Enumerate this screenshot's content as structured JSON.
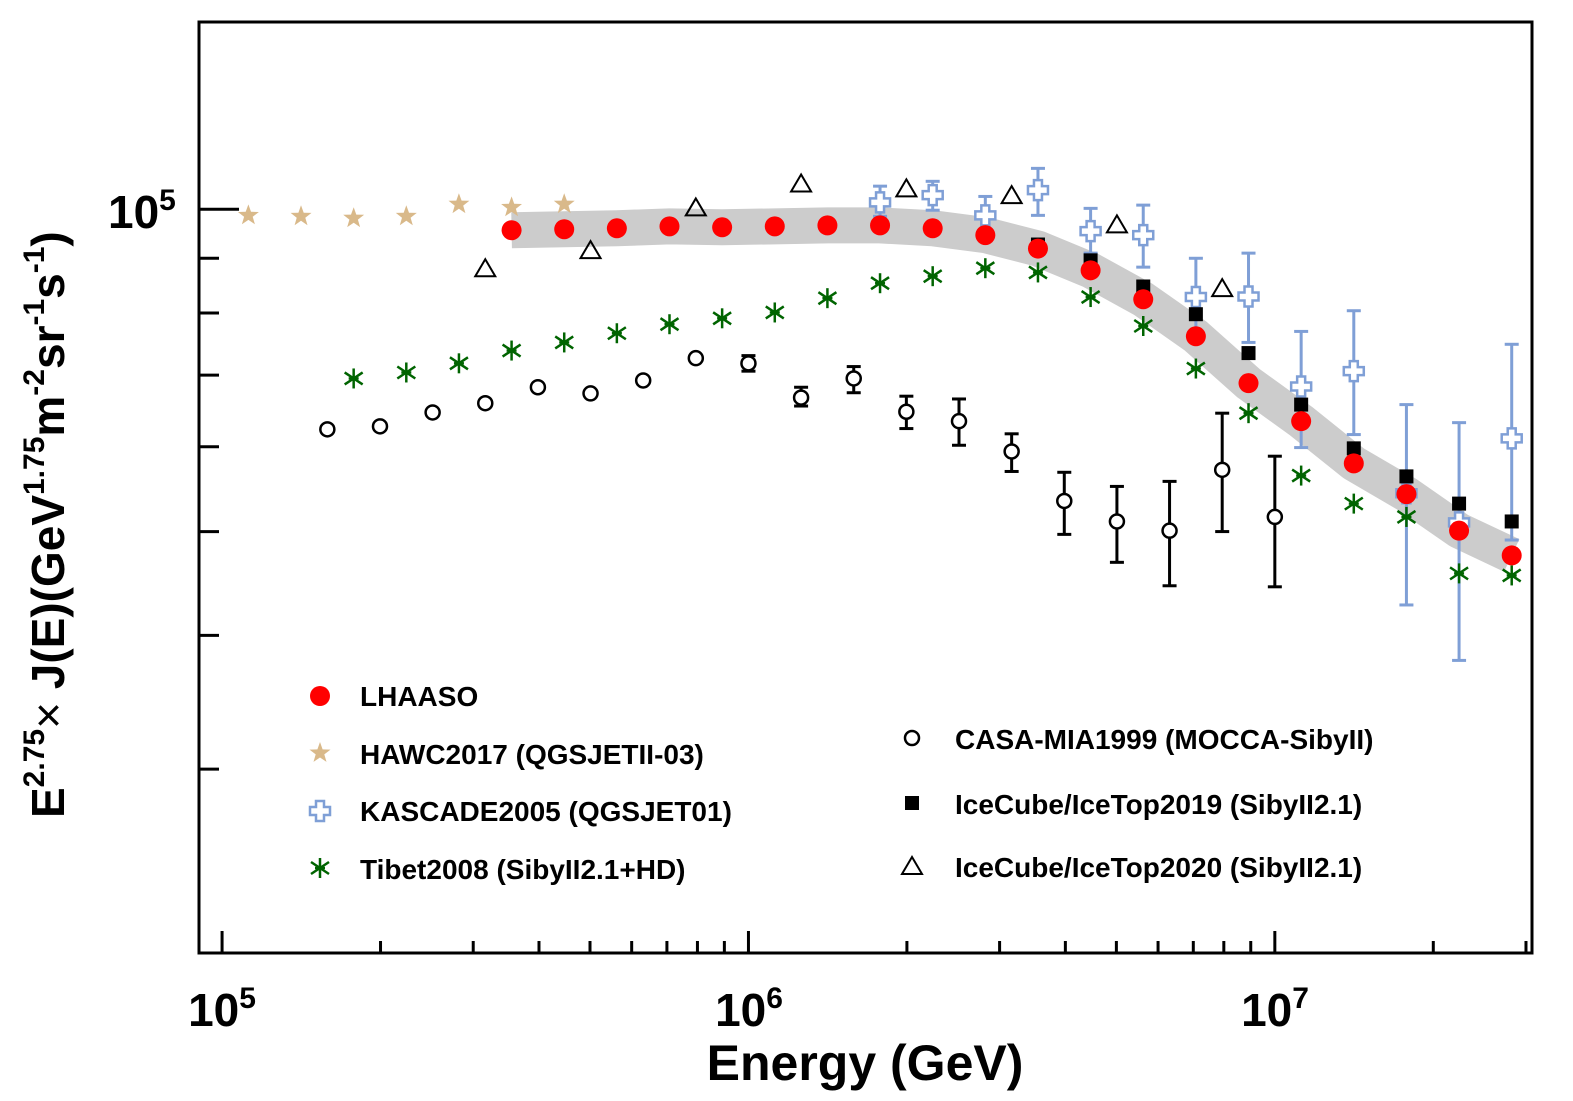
{
  "chart_data": {
    "type": "scatter",
    "xscale": "log",
    "yscale": "log",
    "xlim": [
      90400,
      30800000
    ],
    "ylim": [
      20200,
      149600
    ],
    "xlabel": "Energy (GeV)",
    "ylabel_parts": {
      "base1": "E",
      "sup1": "2.75",
      "times": "×",
      "mid": " J(E)(GeV",
      "sup2": "1.75",
      "m": "m",
      "sup3": "-2",
      "sr": "sr",
      "sup4": "-1",
      "s": "s",
      "sup5": "-1",
      "close": ")"
    },
    "x_tick_labels": [
      {
        "value": 100000,
        "base": "10",
        "exp": "5"
      },
      {
        "value": 1000000,
        "base": "10",
        "exp": "6"
      },
      {
        "value": 10000000,
        "base": "10",
        "exp": "7"
      }
    ],
    "y_tick_labels": [
      {
        "value": 100000,
        "base": "10",
        "exp": "5"
      }
    ],
    "y_minor_ticks": [
      90000,
      80000,
      70000,
      60000,
      50000,
      40000,
      30000
    ],
    "grid": false,
    "legend_placement": "bottom-left and bottom-right",
    "band_color": "#cccccc",
    "series": [
      {
        "name": "LHAASO",
        "marker": "filled-circle",
        "color": "#ff0000",
        "band": true,
        "logx": [
          5.55,
          5.65,
          5.75,
          5.85,
          5.95,
          6.05,
          6.15,
          6.25,
          6.35,
          6.45,
          6.55,
          6.65,
          6.75,
          6.85,
          6.95,
          7.05,
          7.15,
          7.25,
          7.35,
          7.45
        ],
        "y": [
          95600,
          95800,
          96000,
          96400,
          96200,
          96400,
          96600,
          96600,
          96000,
          94600,
          91900,
          87700,
          82400,
          76100,
          68800,
          63400,
          57900,
          54200,
          50100,
          47500
        ]
      },
      {
        "name": "HAWC2017 (QGSJETII-03)",
        "marker": "star",
        "color": "#d9b98a",
        "logx": [
          5.05,
          5.15,
          5.25,
          5.35,
          5.45,
          5.55,
          5.65
        ],
        "y": [
          98700,
          98500,
          98100,
          98500,
          101100,
          100400,
          101100
        ]
      },
      {
        "name": "KASCADE2005 (QGSJET01)",
        "marker": "open-cross",
        "color": "#7f9fd6",
        "logx": [
          6.25,
          6.35,
          6.45,
          6.55,
          6.65,
          6.75,
          6.85,
          6.95,
          7.05,
          7.15,
          7.25,
          7.35,
          7.45
        ],
        "y": [
          101500,
          103100,
          98700,
          104200,
          95400,
          94600,
          82800,
          82900,
          68300,
          70600,
          54300,
          51000,
          61100
        ],
        "err_hi": [
          105100,
          106200,
          102800,
          109200,
          100200,
          100900,
          90000,
          91000,
          76900,
          80400,
          65700,
          63200,
          74800
        ],
        "err_lo": [
          98500,
          99800,
          95600,
          98700,
          91000,
          88300,
          75800,
          75100,
          59900,
          61600,
          42700,
          37900,
          49100
        ]
      },
      {
        "name": "Tibet2008 (SibyII2.1+HD)",
        "marker": "asterisk",
        "color": "#006400",
        "logx": [
          5.25,
          5.35,
          5.45,
          5.55,
          5.65,
          5.75,
          5.85,
          5.95,
          6.05,
          6.15,
          6.25,
          6.35,
          6.45,
          6.55,
          6.65,
          6.75,
          6.85,
          6.95,
          7.05,
          7.15,
          7.25,
          7.35,
          7.45
        ],
        "y": [
          69500,
          70400,
          71800,
          73800,
          75100,
          76600,
          78100,
          79100,
          80100,
          82600,
          85300,
          86600,
          88100,
          87300,
          82800,
          77800,
          71000,
          64500,
          56400,
          53100,
          51600,
          45700,
          45500
        ]
      },
      {
        "name": "CASA-MIA1999 (MOCCA-SibyII)",
        "marker": "open-circle",
        "color": "#000000",
        "logx": [
          5.2,
          5.3,
          5.4,
          5.5,
          5.6,
          5.7,
          5.8,
          5.9,
          6.0,
          6.1,
          6.2,
          6.3,
          6.4,
          6.5,
          6.6,
          6.7,
          6.8,
          6.9,
          7.0
        ],
        "y": [
          62300,
          62700,
          64600,
          65900,
          68200,
          67300,
          69200,
          72600,
          71800,
          66700,
          69500,
          64700,
          63400,
          59400,
          53400,
          51100,
          50100,
          57100,
          51600
        ],
        "err_hi": [
          null,
          null,
          null,
          null,
          null,
          null,
          null,
          null,
          73000,
          68200,
          71300,
          66900,
          66500,
          61700,
          56800,
          55100,
          55700,
          64500,
          58800
        ],
        "err_lo": [
          null,
          null,
          null,
          null,
          null,
          null,
          null,
          null,
          70600,
          65500,
          67400,
          62400,
          60200,
          56900,
          49700,
          46800,
          44500,
          50000,
          44400
        ]
      },
      {
        "name": "IceCube/IceTop2019 (SibyII2.1)",
        "marker": "filled-square",
        "color": "#000000",
        "logx": [
          6.55,
          6.65,
          6.75,
          6.85,
          6.95,
          7.05,
          7.15,
          7.25,
          7.35,
          7.45
        ],
        "y": [
          92700,
          89600,
          84700,
          79800,
          73400,
          65700,
          59800,
          56300,
          53100,
          51100
        ]
      },
      {
        "name": "IceCube/IceTop2020 (SibyII2.1)",
        "marker": "open-triangle",
        "color": "#000000",
        "logx": [
          5.5,
          5.7,
          5.9,
          6.1,
          6.3,
          6.5,
          6.7,
          6.9
        ],
        "y": [
          88100,
          91600,
          100400,
          105700,
          104600,
          103100,
          96800,
          84400
        ]
      }
    ]
  }
}
